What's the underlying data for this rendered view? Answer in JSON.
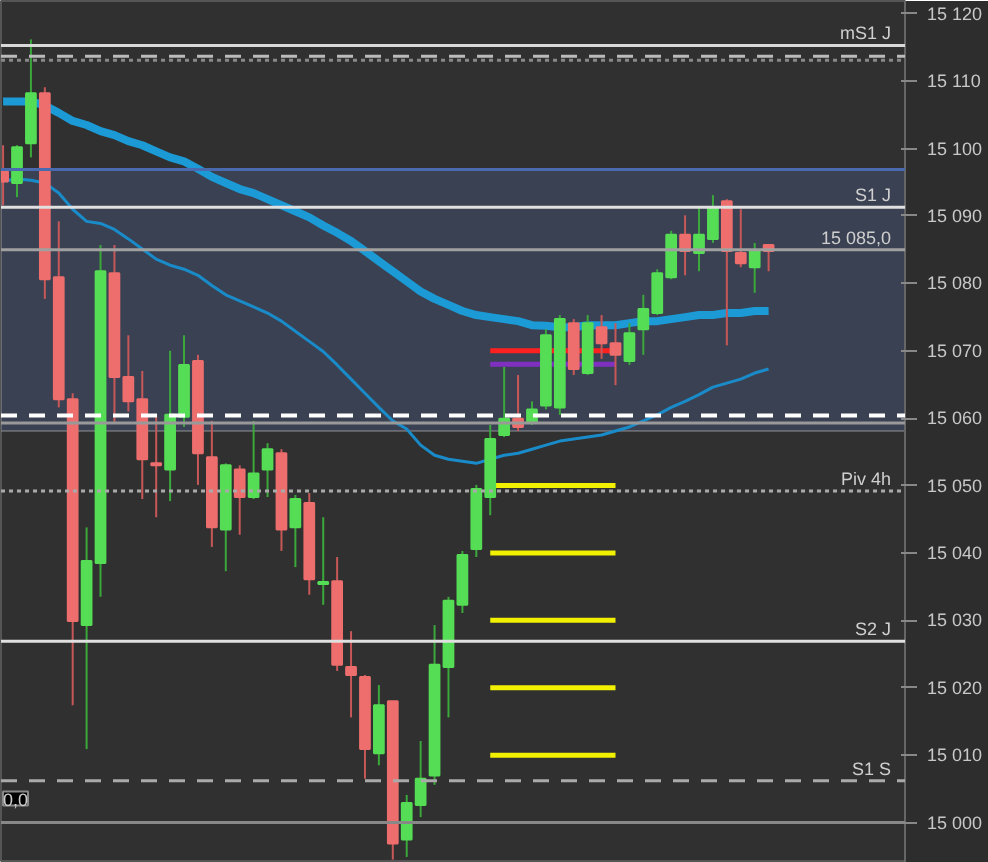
{
  "chart_data": {
    "type": "candlestick",
    "categories": [
      null,
      null,
      null,
      null,
      null,
      null,
      null,
      null,
      null,
      null,
      null,
      null,
      null,
      null,
      null,
      null,
      null,
      null,
      null,
      null,
      null,
      null,
      null,
      null,
      null,
      null,
      null,
      null,
      null,
      null,
      null,
      null,
      null,
      null,
      null,
      null,
      null,
      null,
      null,
      null,
      null,
      null,
      null,
      null,
      null,
      null,
      null,
      null,
      null,
      null,
      null,
      null,
      null,
      null,
      null,
      null
    ],
    "ohlc": [
      [
        15096.6,
        15100.5,
        15091.6,
        15095.1
      ],
      [
        15094.9,
        15100.5,
        15092.8,
        15100.2
      ],
      [
        15100.8,
        15116.2,
        15098.7,
        15108.2
      ],
      [
        15108.2,
        15109.1,
        15077.7,
        15080.6
      ],
      [
        15080.9,
        15089.2,
        15061.6,
        15062.8
      ],
      [
        15062.8,
        15063.7,
        15017.4,
        15029.9
      ],
      [
        15029.3,
        15043.8,
        15010.9,
        15038.8
      ],
      [
        15038.5,
        15085.7,
        15033.5,
        15081.8
      ],
      [
        15081.5,
        15085.7,
        15059.3,
        15066.1
      ],
      [
        15066.1,
        15072.3,
        15061.0,
        15062.5
      ],
      [
        15062.8,
        15067.0,
        15048.0,
        15053.9
      ],
      [
        15053.3,
        15060.5,
        15045.3,
        15053.0
      ],
      [
        15052.4,
        15070.0,
        15047.7,
        15060.5
      ],
      [
        15060.2,
        15072.3,
        15058.7,
        15067.9
      ],
      [
        15068.5,
        15069.4,
        15050.1,
        15054.8
      ],
      [
        15054.2,
        15059.6,
        15040.9,
        15043.8
      ],
      [
        15043.5,
        15053.3,
        15037.3,
        15053.0
      ],
      [
        15052.4,
        15053.0,
        15042.7,
        15048.3
      ],
      [
        15048.3,
        15059.6,
        15048.0,
        15051.8
      ],
      [
        15052.4,
        15056.3,
        15048.3,
        15055.4
      ],
      [
        15054.8,
        15055.4,
        15040.3,
        15043.5
      ],
      [
        15043.8,
        15048.6,
        15037.9,
        15048.0
      ],
      [
        15047.4,
        15048.9,
        15033.8,
        15036.1
      ],
      [
        15035.4,
        15045.3,
        15032.3,
        15035.7
      ],
      [
        15035.8,
        15039.4,
        15022.5,
        15023.4
      ],
      [
        15023.1,
        15028.4,
        15015.6,
        15021.9
      ],
      [
        15021.6,
        15021.9,
        15006.5,
        15010.9
      ],
      [
        15010.3,
        15020.4,
        15008.5,
        15017.4
      ],
      [
        15018.0,
        15018.0,
        14994.5,
        14996.9
      ],
      [
        14997.5,
        15004.1,
        14994.9,
        15002.9
      ],
      [
        15002.6,
        15012.1,
        15000.8,
        15006.5
      ],
      [
        15007.0,
        15029.3,
        15005.6,
        15023.4
      ],
      [
        15023.1,
        15033.5,
        15015.6,
        15032.9
      ],
      [
        15032.3,
        15040.3,
        15031.1,
        15039.7
      ],
      [
        15040.6,
        15050.1,
        15039.4,
        15049.5
      ],
      [
        15048.3,
        15059.0,
        15045.6,
        15056.9
      ],
      [
        15057.5,
        15067.6,
        15057.2,
        15059.9
      ],
      [
        15059.9,
        15066.4,
        15058.1,
        15058.7
      ],
      [
        15059.3,
        15062.5,
        15059.0,
        15061.3
      ],
      [
        15061.9,
        15073.2,
        15061.3,
        15072.3
      ],
      [
        15061.6,
        15075.3,
        15060.5,
        15074.7
      ],
      [
        15074.1,
        15074.7,
        15066.4,
        15067.3
      ],
      [
        15066.7,
        15075.3,
        15066.4,
        15074.1
      ],
      [
        15073.5,
        15075.3,
        15068.8,
        15071.1
      ],
      [
        15071.1,
        15074.1,
        15064.9,
        15069.4
      ],
      [
        15068.5,
        15074.1,
        15067.9,
        15072.6
      ],
      [
        15073.2,
        15078.3,
        15069.4,
        15076.2
      ],
      [
        15075.6,
        15082.1,
        15075.3,
        15081.5
      ],
      [
        15080.9,
        15087.8,
        15080.6,
        15087.2
      ],
      [
        15087.2,
        15090.1,
        15081.2,
        15084.8
      ],
      [
        15084.5,
        15091.3,
        15081.8,
        15087.2
      ],
      [
        15086.6,
        15093.1,
        15086.0,
        15091.3
      ],
      [
        15092.2,
        15092.5,
        15070.8,
        15084.8
      ],
      [
        15084.5,
        15091.0,
        15082.4,
        15083.0
      ],
      [
        15082.4,
        15086.0,
        15078.6,
        15084.8
      ],
      [
        15085.7,
        15085.7,
        15081.8,
        15084.8
      ]
    ],
    "series": [
      {
        "type": "line",
        "color": "#1b9ad6",
        "values": [
          15107.0,
          15107.0,
          15107.0,
          15106.4,
          15105.3,
          15104.1,
          15103.5,
          15102.6,
          15102.0,
          15101.1,
          15100.5,
          15099.6,
          15098.7,
          15098.1,
          15097.0,
          15095.8,
          15094.9,
          15094.0,
          15093.4,
          15092.5,
          15091.6,
          15090.7,
          15089.8,
          15088.6,
          15087.5,
          15086.3,
          15084.8,
          15083.3,
          15081.8,
          15080.3,
          15078.8,
          15077.7,
          15076.8,
          15075.9,
          15075.3,
          15075.0,
          15074.7,
          15074.4,
          15073.8,
          15073.7,
          15073.5,
          15073.5,
          15073.8,
          15073.8,
          15073.8,
          15074.1,
          15074.4,
          15074.4,
          15074.7,
          15075.0,
          15075.3,
          15075.3,
          15075.6,
          15075.6,
          15075.9,
          15075.9
        ]
      },
      {
        "type": "line",
        "color": "#1a8bc9",
        "values": [
          15095.2,
          15095.5,
          15095.3,
          15094.9,
          15093.4,
          15091.0,
          15089.2,
          15088.9,
          15088.0,
          15086.6,
          15085.1,
          15083.6,
          15082.7,
          15082.1,
          15081.2,
          15079.7,
          15078.3,
          15077.4,
          15076.5,
          15075.6,
          15074.4,
          15072.9,
          15071.4,
          15069.9,
          15067.9,
          15065.8,
          15063.7,
          15061.6,
          15059.6,
          15058.4,
          15056.0,
          15054.5,
          15053.9,
          15053.6,
          15053.3,
          15053.9,
          15054.5,
          15054.8,
          15055.4,
          15056.0,
          15056.6,
          15056.9,
          15057.2,
          15057.5,
          15058.1,
          15058.7,
          15059.6,
          15060.5,
          15061.6,
          15062.5,
          15063.5,
          15064.6,
          15065.2,
          15065.8,
          15066.7,
          15067.3
        ]
      },
      {
        "type": "line",
        "color": "#ff2020",
        "values": [
          null,
          null,
          null,
          null,
          null,
          null,
          null,
          null,
          null,
          null,
          null,
          null,
          null,
          null,
          null,
          null,
          null,
          null,
          null,
          null,
          null,
          null,
          null,
          null,
          null,
          null,
          null,
          null,
          null,
          null,
          null,
          null,
          null,
          null,
          null,
          15070,
          15070,
          15070,
          15070,
          15070,
          15070,
          15070,
          15070,
          15070,
          15070,
          null,
          null,
          null,
          null,
          null,
          null,
          null,
          null,
          null,
          null,
          null
        ]
      },
      {
        "type": "line",
        "color": "#8030c0",
        "values": [
          null,
          null,
          null,
          null,
          null,
          null,
          null,
          null,
          null,
          null,
          null,
          null,
          null,
          null,
          null,
          null,
          null,
          null,
          null,
          null,
          null,
          null,
          null,
          null,
          null,
          null,
          null,
          null,
          null,
          null,
          null,
          null,
          null,
          null,
          null,
          15068,
          15068,
          15068,
          15068,
          15068,
          15068,
          15068,
          15068,
          15068,
          15068,
          null,
          null,
          null,
          null,
          null,
          null,
          null,
          null,
          null,
          null,
          null
        ]
      },
      {
        "type": "line",
        "color": "#f0f000",
        "values": [
          null,
          null,
          null,
          null,
          null,
          null,
          null,
          null,
          null,
          null,
          null,
          null,
          null,
          null,
          null,
          null,
          null,
          null,
          null,
          null,
          null,
          null,
          null,
          null,
          null,
          null,
          null,
          null,
          null,
          null,
          null,
          null,
          null,
          null,
          null,
          15050,
          15050,
          15050,
          15050,
          15050,
          15050,
          15050,
          15050,
          15050,
          15050,
          null,
          null,
          null,
          null,
          null,
          null,
          null,
          null,
          null,
          null,
          null
        ]
      },
      {
        "type": "line",
        "color": "#f0f000",
        "values": [
          null,
          null,
          null,
          null,
          null,
          null,
          null,
          null,
          null,
          null,
          null,
          null,
          null,
          null,
          null,
          null,
          null,
          null,
          null,
          null,
          null,
          null,
          null,
          null,
          null,
          null,
          null,
          null,
          null,
          null,
          null,
          null,
          null,
          null,
          null,
          15040,
          15040,
          15040,
          15040,
          15040,
          15040,
          15040,
          15040,
          15040,
          15040,
          null,
          null,
          null,
          null,
          null,
          null,
          null,
          null,
          null,
          null,
          null
        ]
      },
      {
        "type": "line",
        "color": "#f0f000",
        "values": [
          null,
          null,
          null,
          null,
          null,
          null,
          null,
          null,
          null,
          null,
          null,
          null,
          null,
          null,
          null,
          null,
          null,
          null,
          null,
          null,
          null,
          null,
          null,
          null,
          null,
          null,
          null,
          null,
          null,
          null,
          null,
          null,
          null,
          null,
          null,
          15030,
          15030,
          15030,
          15030,
          15030,
          15030,
          15030,
          15030,
          15030,
          15030,
          null,
          null,
          null,
          null,
          null,
          null,
          null,
          null,
          null,
          null,
          null
        ]
      },
      {
        "type": "line",
        "color": "#f0f000",
        "values": [
          null,
          null,
          null,
          null,
          null,
          null,
          null,
          null,
          null,
          null,
          null,
          null,
          null,
          null,
          null,
          null,
          null,
          null,
          null,
          null,
          null,
          null,
          null,
          null,
          null,
          null,
          null,
          null,
          null,
          null,
          null,
          null,
          null,
          null,
          null,
          15020,
          15020,
          15020,
          15020,
          15020,
          15020,
          15020,
          15020,
          15020,
          15020,
          null,
          null,
          null,
          null,
          null,
          null,
          null,
          null,
          null,
          null,
          null
        ]
      },
      {
        "type": "line",
        "color": "#f0f000",
        "values": [
          null,
          null,
          null,
          null,
          null,
          null,
          null,
          null,
          null,
          null,
          null,
          null,
          null,
          null,
          null,
          null,
          null,
          null,
          null,
          null,
          null,
          null,
          null,
          null,
          null,
          null,
          null,
          null,
          null,
          null,
          null,
          null,
          null,
          null,
          null,
          15010,
          15010,
          15010,
          15010,
          15010,
          15010,
          15010,
          15010,
          15010,
          15010,
          null,
          null,
          null,
          null,
          null,
          null,
          null,
          null,
          null,
          null,
          null
        ]
      }
    ],
    "bands": [
      {
        "axis": "y",
        "from": 15058.1,
        "to": 15096.9,
        "color": "#3a4152"
      }
    ],
    "ref_lines": [
      {
        "axis": "y",
        "value": 15115.3,
        "label": "mS1 J",
        "color": "#d8d8d8",
        "line_style": "solid"
      },
      {
        "axis": "y",
        "value": 15113.7,
        "label": null,
        "color": "#bbbbbb",
        "line_style": "dashed"
      },
      {
        "axis": "y",
        "value": 15113.1,
        "label": null,
        "color": "#888888",
        "line_style": "dotted"
      },
      {
        "axis": "y",
        "value": 15096.9,
        "label": null,
        "color": "#4a6ab0",
        "line_style": "solid"
      },
      {
        "axis": "y",
        "value": 15091.3,
        "label": "S1 J",
        "color": "#e0e0e0",
        "line_style": "solid"
      },
      {
        "axis": "y",
        "value": 15085,
        "label": "15 085,0",
        "color": "#a0a0a0",
        "line_style": "solid"
      },
      {
        "axis": "y",
        "value": 15060.4,
        "label": null,
        "color": "#ffffff",
        "line_style": "dashed"
      },
      {
        "axis": "y",
        "value": 15059.3,
        "label": null,
        "color": "#999999",
        "line_style": "solid"
      },
      {
        "axis": "y",
        "value": 15049.2,
        "label": "Piv 4h",
        "color": "#aaaaaa",
        "line_style": "dotted"
      },
      {
        "axis": "y",
        "value": 15026.9,
        "label": "S2 J",
        "color": "#e0e0e0",
        "line_style": "solid"
      },
      {
        "axis": "y",
        "value": 15006.2,
        "label": "S1 S",
        "color": "#aaaaaa",
        "line_style": "dashed"
      },
      {
        "axis": "y",
        "value": 15000,
        "label": null,
        "color": "#888888",
        "line_style": "solid"
      }
    ],
    "annotations": [
      {
        "text": "0,0",
        "y": 15000
      }
    ],
    "ylim": [
      14994,
      15121.9
    ],
    "yticks": [
      {
        "value": 15000,
        "label": "15 000"
      },
      {
        "value": 15010,
        "label": "15 010"
      },
      {
        "value": 15020,
        "label": "15 020"
      },
      {
        "value": 15030,
        "label": "15 030"
      },
      {
        "value": 15040,
        "label": "15 040"
      },
      {
        "value": 15050,
        "label": "15 050"
      },
      {
        "value": 15060,
        "label": "15 060"
      },
      {
        "value": 15070,
        "label": "15 070"
      },
      {
        "value": 15080,
        "label": "15 080"
      },
      {
        "value": 15090,
        "label": "15 090"
      },
      {
        "value": 15100,
        "label": "15 100"
      },
      {
        "value": 15110,
        "label": "15 110"
      },
      {
        "value": 15120,
        "label": "15 120"
      }
    ],
    "tick_labels": "y"
  }
}
